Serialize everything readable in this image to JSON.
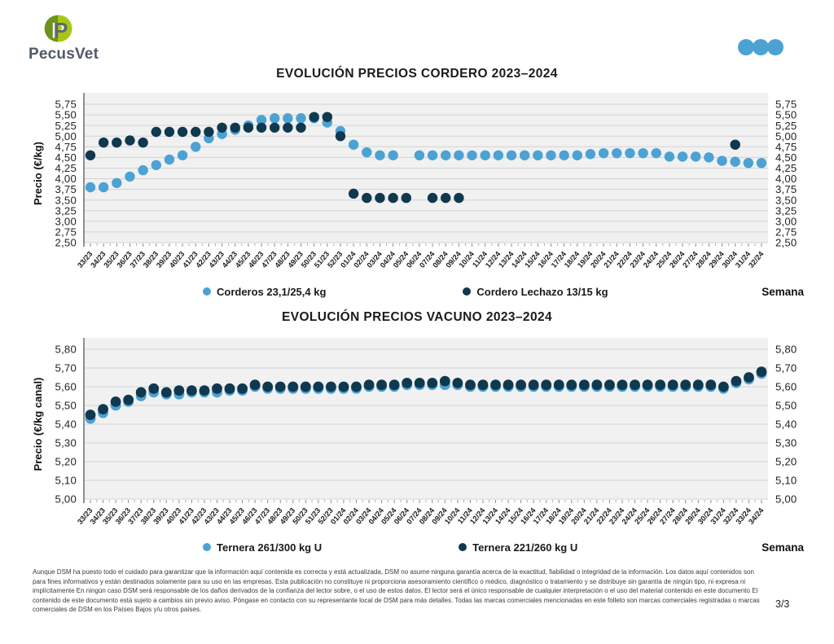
{
  "header": {
    "logo_text": "PecusVet",
    "brand_icon": "pecusvet-logo",
    "pagination_dots_icon": "three-dots"
  },
  "colors": {
    "light_blue": "#4BA2D3",
    "dark_blue": "#10384F",
    "plot_bg": "#F1F1F1",
    "gridline": "#D2D2D2"
  },
  "chart_data": [
    {
      "type": "scatter",
      "title": "EVOLUCIÓN PRECIOS CORDERO 2023–2024",
      "ylabel": "Precio (€/kg)",
      "xlabel": "Semana",
      "ylim": [
        2.5,
        5.75
      ],
      "ytick_step": 0.25,
      "grid": true,
      "legend_position": "bottom",
      "categories": [
        "33/23",
        "34/23",
        "35/23",
        "36/23",
        "37/23",
        "38/23",
        "39/23",
        "40/23",
        "41/23",
        "42/23",
        "43/23",
        "44/23",
        "45/23",
        "46/23",
        "47/23",
        "48/23",
        "49/23",
        "50/23",
        "51/23",
        "52/23",
        "01/24",
        "02/24",
        "03/24",
        "04/24",
        "05/24",
        "06/24",
        "07/24",
        "08/24",
        "09/24",
        "10/24",
        "11/24",
        "12/24",
        "13/24",
        "14/24",
        "15/24",
        "16/24",
        "17/24",
        "18/24",
        "19/24",
        "20/24",
        "21/24",
        "22/24",
        "23/24",
        "24/24",
        "25/24",
        "26/24",
        "27/24",
        "28/24",
        "29/24",
        "30/24",
        "31/24",
        "32/24"
      ],
      "series": [
        {
          "name": "Corderos 23,1/25,4 kg",
          "color": "#4BA2D3",
          "values": [
            3.8,
            3.8,
            3.9,
            4.05,
            4.2,
            4.32,
            4.45,
            4.55,
            4.75,
            4.95,
            5.05,
            5.15,
            5.25,
            5.38,
            5.42,
            5.42,
            5.42,
            5.42,
            5.32,
            5.12,
            4.8,
            4.62,
            4.55,
            4.55,
            null,
            4.55,
            4.55,
            4.55,
            4.55,
            4.55,
            4.55,
            4.55,
            4.55,
            4.55,
            4.55,
            4.55,
            4.55,
            4.55,
            4.58,
            4.6,
            4.6,
            4.6,
            4.6,
            4.6,
            4.52,
            4.52,
            4.52,
            4.5,
            4.42,
            4.4,
            4.37,
            4.37
          ]
        },
        {
          "name": "Cordero Lechazo 13/15 kg",
          "color": "#10384F",
          "values": [
            4.55,
            4.85,
            4.85,
            4.9,
            4.85,
            5.1,
            5.1,
            5.1,
            5.1,
            5.1,
            5.2,
            5.2,
            5.2,
            5.2,
            5.2,
            5.2,
            5.2,
            5.45,
            5.45,
            5.0,
            3.65,
            3.55,
            3.55,
            3.55,
            3.55,
            null,
            3.55,
            3.55,
            3.55,
            null,
            null,
            null,
            null,
            null,
            null,
            null,
            null,
            null,
            null,
            null,
            null,
            null,
            null,
            null,
            null,
            null,
            null,
            null,
            null,
            4.8,
            null,
            null
          ]
        }
      ]
    },
    {
      "type": "scatter",
      "title": "EVOLUCIÓN PRECIOS VACUNO 2023–2024",
      "ylabel": "Precio (€/kg canal)",
      "xlabel": "Semana",
      "ylim": [
        5.0,
        5.8
      ],
      "ytick_step": 0.1,
      "grid": true,
      "legend_position": "bottom",
      "categories": [
        "33/23",
        "34/23",
        "35/23",
        "36/23",
        "37/23",
        "38/23",
        "39/23",
        "40/23",
        "41/23",
        "42/23",
        "43/23",
        "44/23",
        "45/23",
        "46/23",
        "47/23",
        "48/23",
        "49/23",
        "50/23",
        "51/23",
        "52/23",
        "01/24",
        "02/24",
        "03/24",
        "04/24",
        "05/24",
        "06/24",
        "07/24",
        "08/24",
        "09/24",
        "10/24",
        "11/24",
        "12/24",
        "13/24",
        "14/24",
        "15/24",
        "16/24",
        "17/24",
        "18/24",
        "19/24",
        "20/24",
        "21/24",
        "22/24",
        "23/24",
        "24/24",
        "25/24",
        "26/24",
        "27/24",
        "28/24",
        "29/24",
        "30/24",
        "31/24",
        "32/24",
        "33/24",
        "34/24"
      ],
      "series": [
        {
          "name": "Ternera 261/300 kg U",
          "color": "#4BA2D3",
          "values": [
            5.43,
            5.46,
            5.5,
            5.52,
            5.55,
            5.57,
            5.56,
            5.56,
            5.57,
            5.57,
            5.57,
            5.58,
            5.58,
            5.6,
            5.59,
            5.59,
            5.59,
            5.59,
            5.59,
            5.59,
            5.59,
            5.59,
            5.6,
            5.6,
            5.6,
            5.61,
            5.61,
            5.61,
            5.61,
            5.61,
            5.6,
            5.6,
            5.6,
            5.6,
            5.6,
            5.6,
            5.6,
            5.6,
            5.6,
            5.6,
            5.6,
            5.6,
            5.6,
            5.6,
            5.6,
            5.6,
            5.6,
            5.6,
            5.6,
            5.6,
            5.59,
            5.62,
            5.64,
            5.67
          ]
        },
        {
          "name": "Ternera 221/260 kg U",
          "color": "#10384F",
          "values": [
            5.45,
            5.48,
            5.52,
            5.53,
            5.57,
            5.59,
            5.57,
            5.58,
            5.58,
            5.58,
            5.59,
            5.59,
            5.59,
            5.61,
            5.6,
            5.6,
            5.6,
            5.6,
            5.6,
            5.6,
            5.6,
            5.6,
            5.61,
            5.61,
            5.61,
            5.62,
            5.62,
            5.62,
            5.63,
            5.62,
            5.61,
            5.61,
            5.61,
            5.61,
            5.61,
            5.61,
            5.61,
            5.61,
            5.61,
            5.61,
            5.61,
            5.61,
            5.61,
            5.61,
            5.61,
            5.61,
            5.61,
            5.61,
            5.61,
            5.61,
            5.6,
            5.63,
            5.65,
            5.68
          ]
        }
      ]
    }
  ],
  "footer": {
    "disclaimer": "Aunque DSM ha puesto todo el cuidado para garantizar que la información aquí contenida es correcta y está actualizada, DSM no asume ninguna garantía acerca de la exactitud, fiabilidad o integridad de la información. Los datos aquí contenidos son para fines informativos y están destinados solamente para su uso en las empresas. Esta publicación no constituye ni proporciona asesoramiento científico o médico, diagnóstico o tratamiento y se distribuye sin garantía de ningún tipo, ni expresa ni implícitamente En ningún caso DSM será responsable de los daños derivados de la confianza del lector sobre, o el uso de estos datos. El lector será el único responsable de cualquier interpretación o el uso del material contenido en este documento El contenido de este documento está sujeto a cambios sin previo aviso. Póngase en contacto con su representante local de DSM para más detalles. Todas las marcas comerciales mencionadas en este folleto son marcas comerciales registradas o marcas comerciales de DSM en los Países Bajos y/u otros países.",
    "page": "3/3"
  }
}
